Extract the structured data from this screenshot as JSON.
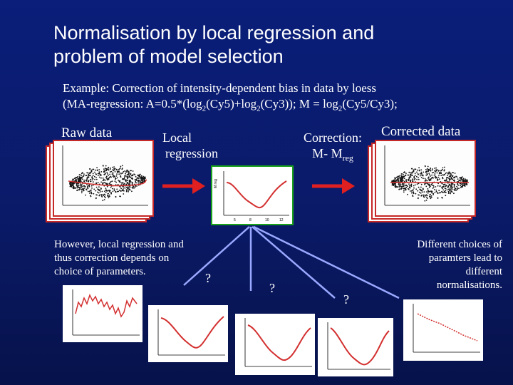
{
  "slide": {
    "title_line1": "Normalisation by local regression and",
    "title_line2": "problem of model selection",
    "example_line1": "Example: Correction of intensity-dependent bias in data by loess",
    "example_line2_a": "(MA-regression: A=0.5*(log",
    "example_line2_sub1": "2",
    "example_line2_b": "(Cy5)+log",
    "example_line2_sub2": "2",
    "example_line2_c": "(Cy3)); M = log",
    "example_line2_sub3": "2",
    "example_line2_d": "(Cy5/Cy3);",
    "raw_data_label": "Raw data",
    "local_regression_line1": "Local",
    "local_regression_line2": "regression",
    "correction_line1": "Correction:",
    "correction_line2_main": "M- M",
    "correction_line2_sub": "reg",
    "corrected_data_label": "Corrected data",
    "however_line1": "However, local regression and",
    "however_line2": "thus correction depends on",
    "however_line3": "choice of parameters.",
    "different_line1": "Different choices of",
    "different_line2": "paramters lead to",
    "different_line3": "different",
    "different_line4": "normalisations.",
    "question_marks": [
      "?",
      "?",
      "?"
    ]
  },
  "colors": {
    "background": "#0b1a68",
    "arrow_red": "#e02020",
    "panel_border_red": "#c62828",
    "panel_border_green": "#1aa31a",
    "curve_red": "#d32f2f",
    "pointer_line": "#9aa8ff"
  },
  "icons": [
    "right-arrow-icon",
    "right-arrow-icon"
  ]
}
